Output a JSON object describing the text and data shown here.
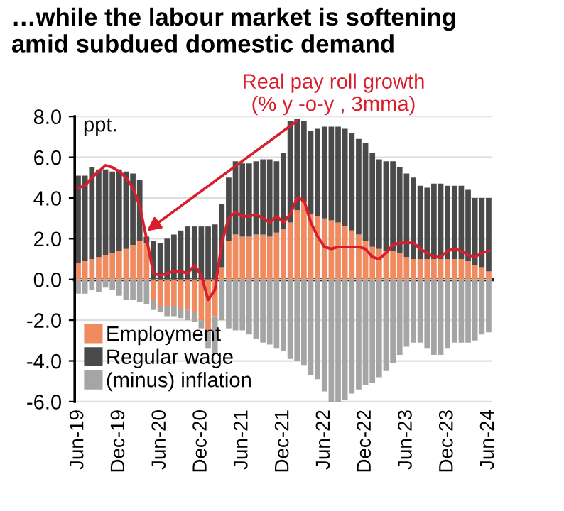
{
  "chart_data": {
    "type": "bar",
    "title": "…while the labour market is softening\namid subdued domestic demand",
    "ylabel": "ppt.",
    "categories": [
      "Jun-19",
      null,
      null,
      null,
      null,
      null,
      "Dec-19",
      null,
      null,
      null,
      null,
      null,
      "Jun-20",
      null,
      null,
      null,
      null,
      null,
      "Dec-20",
      null,
      null,
      null,
      null,
      null,
      "Jun-21",
      null,
      null,
      null,
      null,
      null,
      "Dec-21",
      null,
      null,
      null,
      null,
      null,
      "Jun-22",
      null,
      null,
      null,
      null,
      null,
      "Dec-22",
      null,
      null,
      null,
      null,
      null,
      "Jun-23",
      null,
      null,
      null,
      null,
      null,
      "Dec-23",
      null,
      null,
      null,
      null,
      null,
      "Jun-24"
    ],
    "stacked": true,
    "series": [
      {
        "name": "Employment",
        "color": "#f08a5f",
        "values": [
          0.8,
          0.9,
          1.0,
          1.1,
          1.2,
          1.3,
          1.4,
          1.5,
          1.7,
          1.9,
          1.8,
          -1.0,
          -1.3,
          -1.3,
          -1.3,
          -1.4,
          -1.5,
          -1.6,
          -2.0,
          -2.5,
          -1.8,
          0.6,
          1.9,
          2.2,
          2.1,
          2.1,
          2.2,
          2.2,
          2.1,
          2.3,
          2.5,
          2.8,
          3.4,
          3.8,
          3.2,
          3.1,
          3.0,
          2.9,
          2.8,
          2.6,
          2.4,
          2.2,
          1.9,
          1.6,
          1.5,
          1.4,
          1.4,
          1.3,
          1.1,
          1.0,
          1.0,
          1.0,
          1.0,
          1.0,
          1.0,
          1.0,
          1.0,
          0.9,
          0.7,
          0.6,
          0.4
        ]
      },
      {
        "name": "Regular wage",
        "color": "#4a4a4a",
        "values": [
          4.3,
          4.2,
          4.5,
          4.3,
          4.2,
          4.0,
          4.0,
          3.8,
          3.5,
          3.0,
          0.3,
          1.9,
          1.8,
          2.0,
          2.2,
          2.4,
          2.6,
          2.6,
          2.6,
          2.6,
          2.7,
          3.1,
          3.1,
          3.6,
          3.6,
          3.6,
          3.6,
          3.7,
          3.8,
          3.5,
          3.7,
          5.0,
          4.5,
          4.0,
          4.1,
          4.3,
          4.5,
          4.6,
          4.7,
          4.8,
          4.8,
          4.7,
          4.8,
          4.6,
          4.4,
          4.4,
          4.4,
          4.2,
          4.1,
          4.0,
          3.6,
          3.5,
          3.7,
          3.7,
          3.6,
          3.6,
          3.6,
          3.5,
          3.3,
          3.4,
          3.6
        ]
      },
      {
        "name": "(minus) inflation",
        "color": "#a5a5a5",
        "values": [
          -0.7,
          -0.7,
          -0.5,
          -0.6,
          -0.4,
          -0.5,
          -0.8,
          -1.0,
          -1.0,
          -1.1,
          -1.2,
          -0.5,
          -0.3,
          -0.5,
          -0.5,
          -0.5,
          -0.5,
          -0.5,
          -0.4,
          -0.9,
          -1.8,
          -2.0,
          -2.4,
          -2.5,
          -2.5,
          -2.7,
          -2.9,
          -3.1,
          -3.2,
          -3.4,
          -3.5,
          -3.9,
          -4.0,
          -4.2,
          -4.7,
          -4.9,
          -5.5,
          -6.0,
          -6.0,
          -5.9,
          -5.6,
          -5.4,
          -5.2,
          -5.1,
          -4.8,
          -4.5,
          -4.1,
          -3.7,
          -3.3,
          -3.1,
          -3.1,
          -3.4,
          -3.7,
          -3.7,
          -3.4,
          -3.1,
          -3.1,
          -3.1,
          -3.0,
          -2.7,
          -2.6
        ]
      },
      {
        "name": "Real pay roll growth\n(% y -o-y , 3mma)",
        "type": "line",
        "color": "#d81e2c",
        "values": [
          4.5,
          4.6,
          5.0,
          5.3,
          5.6,
          5.5,
          5.3,
          5.0,
          4.5,
          3.6,
          2.0,
          0.3,
          0.2,
          0.3,
          0.4,
          0.4,
          0.3,
          0.7,
          0.2,
          -1.0,
          -0.5,
          1.8,
          3.0,
          3.3,
          3.1,
          3.1,
          3.2,
          3.0,
          2.8,
          3.1,
          2.8,
          3.2,
          4.0,
          3.9,
          2.8,
          2.1,
          1.6,
          1.5,
          1.6,
          1.6,
          1.6,
          1.6,
          1.5,
          1.1,
          1.0,
          1.3,
          1.7,
          1.8,
          1.8,
          1.8,
          1.5,
          1.3,
          1.1,
          1.1,
          1.4,
          1.5,
          1.4,
          1.2,
          1.1,
          1.3,
          1.4
        ]
      }
    ],
    "ylim": [
      -6,
      8
    ],
    "yticks": [
      {
        "value": -6,
        "label": "-6.0"
      },
      {
        "value": -4,
        "label": "-4.0"
      },
      {
        "value": -2,
        "label": "-2.0"
      },
      {
        "value": 0,
        "label": "0.0"
      },
      {
        "value": 2,
        "label": "2.0"
      },
      {
        "value": 4,
        "label": "4.0"
      },
      {
        "value": 6,
        "label": "6.0"
      },
      {
        "value": 8,
        "label": "8.0"
      }
    ],
    "grid": "y",
    "legend": "bottom left"
  }
}
